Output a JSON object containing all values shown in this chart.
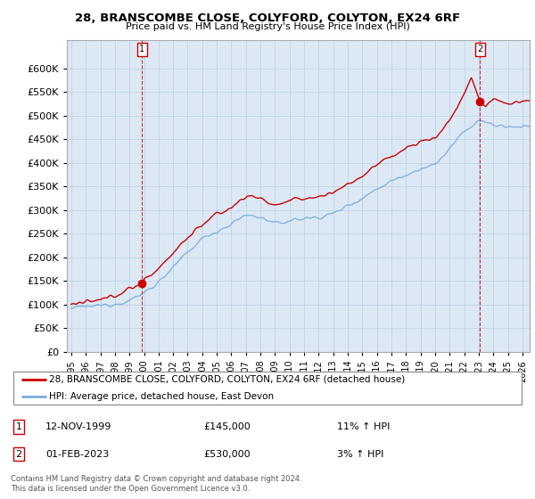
{
  "title": "28, BRANSCOMBE CLOSE, COLYFORD, COLYTON, EX24 6RF",
  "subtitle": "Price paid vs. HM Land Registry's House Price Index (HPI)",
  "legend_line1": "28, BRANSCOMBE CLOSE, COLYFORD, COLYTON, EX24 6RF (detached house)",
  "legend_line2": "HPI: Average price, detached house, East Devon",
  "annotation1_label": "1",
  "annotation1_date": "12-NOV-1999",
  "annotation1_price": "£145,000",
  "annotation1_hpi": "11% ↑ HPI",
  "annotation2_label": "2",
  "annotation2_date": "01-FEB-2023",
  "annotation2_price": "£530,000",
  "annotation2_hpi": "3% ↑ HPI",
  "footer": "Contains HM Land Registry data © Crown copyright and database right 2024.\nThis data is licensed under the Open Government Licence v3.0.",
  "red_color": "#cc0000",
  "blue_color": "#7aade0",
  "chart_bg": "#dce9f5",
  "background_color": "#ffffff",
  "grid_color": "#b8cfe0",
  "ylim": [
    0,
    660000
  ],
  "yticks": [
    0,
    50000,
    100000,
    150000,
    200000,
    250000,
    300000,
    350000,
    400000,
    450000,
    500000,
    550000,
    600000
  ],
  "sale1_x": 1999.87,
  "sale1_y": 145000,
  "sale2_x": 2023.08,
  "sale2_y": 530000,
  "xmin": 1995.0,
  "xmax": 2026.5
}
